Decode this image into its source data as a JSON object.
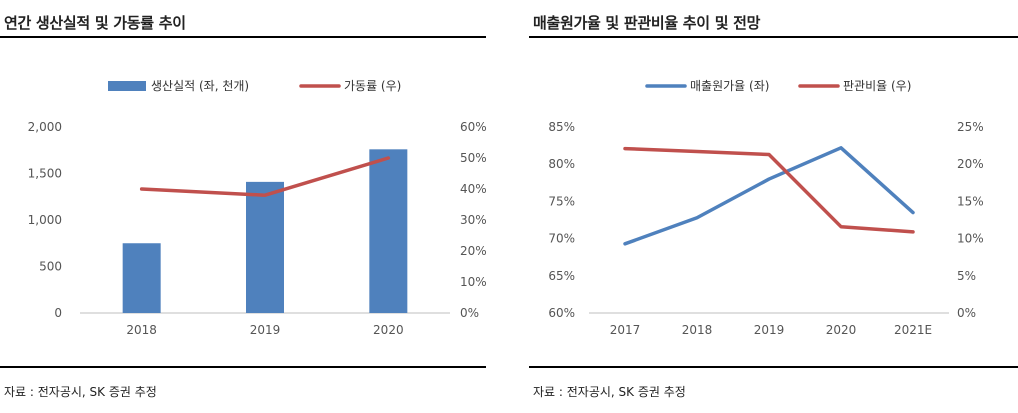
{
  "left": {
    "title": "연간 생산실적 및 가동률 추이",
    "source": "자료 : 전자공시, SK 증권 추정"
  },
  "right": {
    "title": "매출원가율 및 판관비율 추이 및 전망",
    "source": "자료 : 전자공시, SK 증권 추정"
  },
  "colors": {
    "blue": "#4f81bd",
    "red": "#c0504d",
    "axis": "#bfbfbf"
  },
  "chart_data": [
    {
      "type": "bar",
      "categories": [
        "2018",
        "2019",
        "2020"
      ],
      "series": [
        {
          "name": "생산실적 (좌, 천개)",
          "type": "bar",
          "axis": "left",
          "values": [
            750,
            1410,
            1760
          ]
        },
        {
          "name": "가동률 (우)",
          "type": "line",
          "axis": "right",
          "values": [
            40,
            38,
            50
          ]
        }
      ],
      "ylim": [
        0,
        2000
      ],
      "yticks": [
        "0",
        "500",
        "1,000",
        "1,500",
        "2,000"
      ],
      "ylim_right": [
        0,
        60
      ],
      "yticks_right": [
        "0%",
        "10%",
        "20%",
        "30%",
        "40%",
        "50%",
        "60%"
      ],
      "legend": "top"
    },
    {
      "type": "line",
      "categories": [
        "2017",
        "2018",
        "2019",
        "2020",
        "2021E"
      ],
      "series": [
        {
          "name": "매출원가율 (좌)",
          "axis": "left",
          "values": [
            69.3,
            72.8,
            78.0,
            82.2,
            73.5
          ]
        },
        {
          "name": "판관비율 (우)",
          "axis": "right",
          "values": [
            22.1,
            21.7,
            21.3,
            11.6,
            10.9
          ]
        }
      ],
      "ylim": [
        60,
        85
      ],
      "yticks": [
        "60%",
        "65%",
        "70%",
        "75%",
        "80%",
        "85%"
      ],
      "ylim_right": [
        0,
        25
      ],
      "yticks_right": [
        "0%",
        "5%",
        "10%",
        "15%",
        "20%",
        "25%"
      ],
      "legend": "top"
    }
  ]
}
